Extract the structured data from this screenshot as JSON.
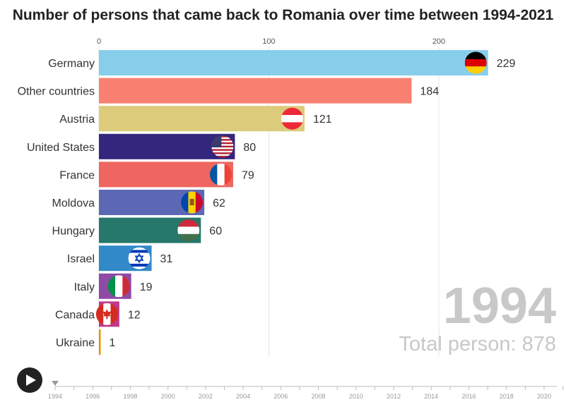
{
  "title": "Number of persons that came back to Romania over time between 1994-2021",
  "chart_data": {
    "type": "bar",
    "orientation": "horizontal",
    "xlim": [
      0,
      270
    ],
    "x_ticks": [
      0,
      100,
      200
    ],
    "categories": [
      "Germany",
      "Other countries",
      "Austria",
      "United States",
      "France",
      "Moldova",
      "Hungary",
      "Israel",
      "Italy",
      "Canada",
      "Ukraine"
    ],
    "values": [
      229,
      184,
      121,
      80,
      79,
      62,
      60,
      31,
      19,
      12,
      1
    ],
    "colors": [
      "#87ceeb",
      "#fa8072",
      "#dccb7a",
      "#34267c",
      "#ef6560",
      "#5c68b4",
      "#25786a",
      "#3189c8",
      "#8e4aa6",
      "#c0398c",
      "#e69500"
    ],
    "flags": [
      "germany-flag",
      "",
      "austria-flag",
      "usa-flag",
      "france-flag",
      "moldova-flag",
      "hungary-flag",
      "israel-flag",
      "italy-flag",
      "canada-flag",
      ""
    ],
    "grid": true
  },
  "year_label": "1994",
  "total_label": "Total person: 878",
  "timeline": {
    "ticks": [
      "1994",
      "1996",
      "1998",
      "2000",
      "2002",
      "2004",
      "2006",
      "2008",
      "2010",
      "2012",
      "2014",
      "2016",
      "2018",
      "2020"
    ],
    "current": "1994"
  },
  "icons": {
    "play": "play-icon"
  }
}
